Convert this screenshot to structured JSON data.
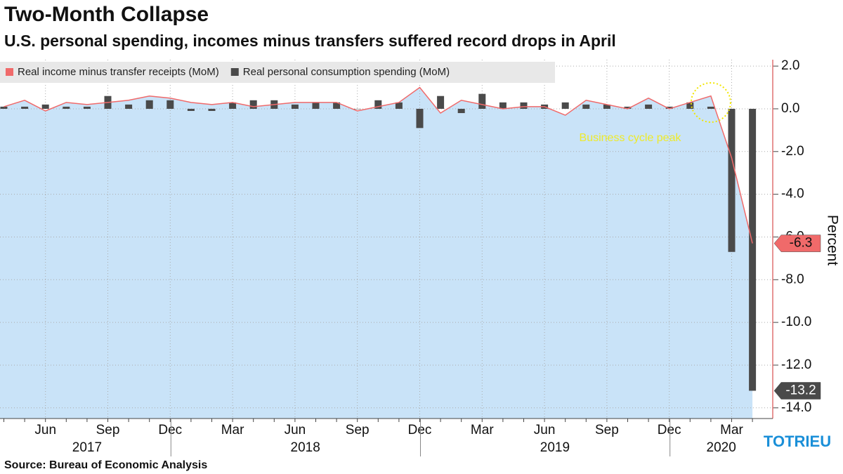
{
  "chart_data": {
    "type": "bar-line",
    "title": "Two-Month Collapse",
    "subtitle": "U.S. personal spending, incomes minus transfers suffered record drops in April",
    "source": "Source:  Bureau of Economic Analysis",
    "y_label": "Percent",
    "annotation": "Business cycle peak",
    "logo": "TOTRIEU",
    "categories": [
      null,
      null,
      "Jun",
      null,
      null,
      "Sep",
      null,
      null,
      "Dec",
      null,
      null,
      "Mar",
      null,
      null,
      "Jun",
      null,
      null,
      "Sep",
      null,
      null,
      "Dec",
      null,
      null,
      "Mar",
      null,
      null,
      "Jun",
      null,
      null,
      "Sep",
      null,
      null,
      "Dec",
      null,
      null,
      "Mar",
      null
    ],
    "year_labels": [
      "2017",
      "2018",
      "2019",
      "2020"
    ],
    "series": [
      {
        "name": "Real income minus transfer receipts (MoM)",
        "type": "area",
        "color": "#f06a6a",
        "fill": "#c9e3f8",
        "values": [
          0.1,
          0.4,
          -0.1,
          0.3,
          0.2,
          0.3,
          0.4,
          0.6,
          0.5,
          0.3,
          0.2,
          0.3,
          0.1,
          0.2,
          0.3,
          0.3,
          0.3,
          -0.1,
          0.1,
          0.3,
          1.0,
          -0.2,
          0.4,
          0.2,
          0.0,
          0.1,
          0.1,
          -0.3,
          0.4,
          0.2,
          0.0,
          0.5,
          0.0,
          0.3,
          0.6,
          -2.3,
          -6.3
        ]
      },
      {
        "name": "Real personal consumption spending (MoM)",
        "type": "bar",
        "color": "#4a4a4a",
        "values": [
          0.1,
          0.1,
          0.2,
          0.1,
          0.1,
          0.6,
          0.2,
          0.4,
          0.4,
          -0.1,
          -0.1,
          0.3,
          0.4,
          0.4,
          0.2,
          0.3,
          0.3,
          0.0,
          0.4,
          0.3,
          -0.9,
          0.6,
          -0.2,
          0.7,
          0.3,
          0.3,
          0.2,
          0.3,
          0.2,
          0.2,
          0.1,
          0.2,
          0.1,
          0.3,
          0.1,
          -6.7,
          -13.2
        ]
      }
    ],
    "ylim": [
      -14.5,
      2.3
    ],
    "yticks": [
      {
        "value": 2,
        "label": "2.0"
      },
      {
        "value": 0,
        "label": "0.0"
      },
      {
        "value": -2,
        "label": "-2.0"
      },
      {
        "value": -4,
        "label": "-4.0"
      },
      {
        "value": -6,
        "label": "-6.0"
      },
      {
        "value": -8,
        "label": "-8.0"
      },
      {
        "value": -10,
        "label": "-10.0"
      },
      {
        "value": -12,
        "label": "-12.0"
      },
      {
        "value": -14,
        "label": "-14.0"
      }
    ],
    "grid": true
  }
}
